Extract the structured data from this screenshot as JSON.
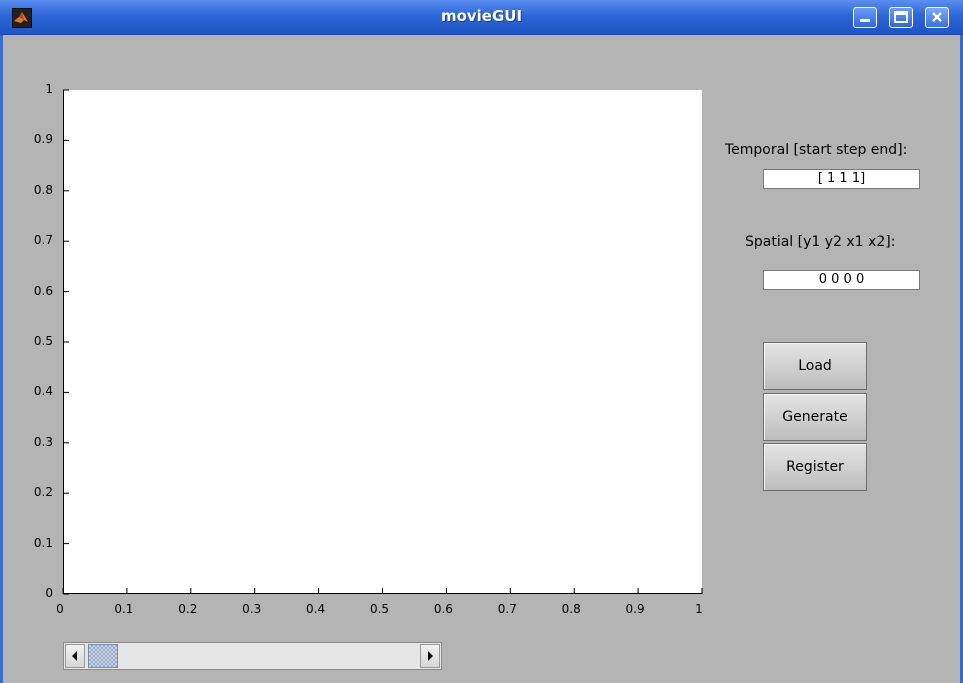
{
  "window": {
    "title": "movieGUI",
    "titlebar_color": "#2c66d8",
    "icons": [
      "matlab-icon",
      "minimize-icon",
      "maximize-icon",
      "close-icon"
    ]
  },
  "axes": {
    "x_ticks": [
      "0",
      "0.1",
      "0.2",
      "0.3",
      "0.4",
      "0.5",
      "0.6",
      "0.7",
      "0.8",
      "0.9",
      "1"
    ],
    "y_ticks": [
      "0",
      "0.1",
      "0.2",
      "0.3",
      "0.4",
      "0.5",
      "0.6",
      "0.7",
      "0.8",
      "0.9",
      "1"
    ],
    "xlim": [
      0,
      1
    ],
    "ylim": [
      0,
      1
    ]
  },
  "controls": {
    "temporal_label": "Temporal [start step end]:",
    "temporal_value": "[ 1 1 1]",
    "spatial_label": "Spatial [y1 y2 x1 x2]:",
    "spatial_value": "0 0 0 0",
    "load_label": "Load",
    "generate_label": "Generate",
    "register_label": "Register"
  },
  "scrollbar": {
    "value": 0.0,
    "left_arrow_icon": "left-arrow-icon",
    "right_arrow_icon": "right-arrow-icon"
  }
}
